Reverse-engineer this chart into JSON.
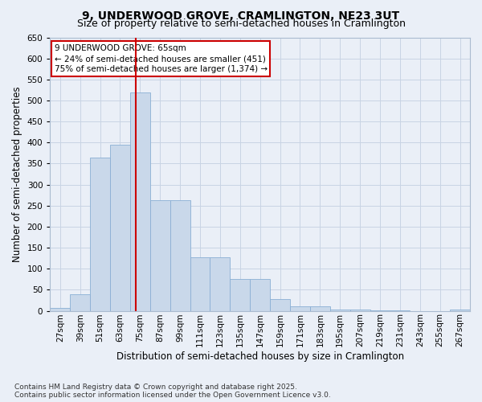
{
  "title": "9, UNDERWOOD GROVE, CRAMLINGTON, NE23 3UT",
  "subtitle": "Size of property relative to semi-detached houses in Cramlington",
  "xlabel": "Distribution of semi-detached houses by size in Cramlington",
  "ylabel": "Number of semi-detached properties",
  "categories": [
    "27sqm",
    "39sqm",
    "51sqm",
    "63sqm",
    "75sqm",
    "87sqm",
    "99sqm",
    "111sqm",
    "123sqm",
    "135sqm",
    "147sqm",
    "159sqm",
    "171sqm",
    "183sqm",
    "195sqm",
    "207sqm",
    "219sqm",
    "231sqm",
    "243sqm",
    "255sqm",
    "267sqm"
  ],
  "values": [
    7,
    40,
    365,
    395,
    520,
    263,
    263,
    128,
    128,
    75,
    75,
    27,
    10,
    10,
    3,
    3,
    1,
    1,
    0,
    0,
    3
  ],
  "bar_color": "#c9d8ea",
  "bar_edge_color": "#8aafd4",
  "grid_color": "#c8d4e4",
  "background_color": "#eaeff7",
  "annotation_box_color": "#ffffff",
  "annotation_border_color": "#cc0000",
  "property_line_color": "#cc0000",
  "property_line_x": 3.8,
  "smaller_pct": "24%",
  "smaller_n": "451",
  "larger_pct": "75%",
  "larger_n": "1,374",
  "ylim": [
    0,
    650
  ],
  "yticks": [
    0,
    50,
    100,
    150,
    200,
    250,
    300,
    350,
    400,
    450,
    500,
    550,
    600,
    650
  ],
  "footer": "Contains HM Land Registry data © Crown copyright and database right 2025.\nContains public sector information licensed under the Open Government Licence v3.0.",
  "title_fontsize": 10,
  "subtitle_fontsize": 9,
  "axis_label_fontsize": 8.5,
  "tick_fontsize": 7.5,
  "annotation_fontsize": 7.5,
  "footer_fontsize": 6.5
}
